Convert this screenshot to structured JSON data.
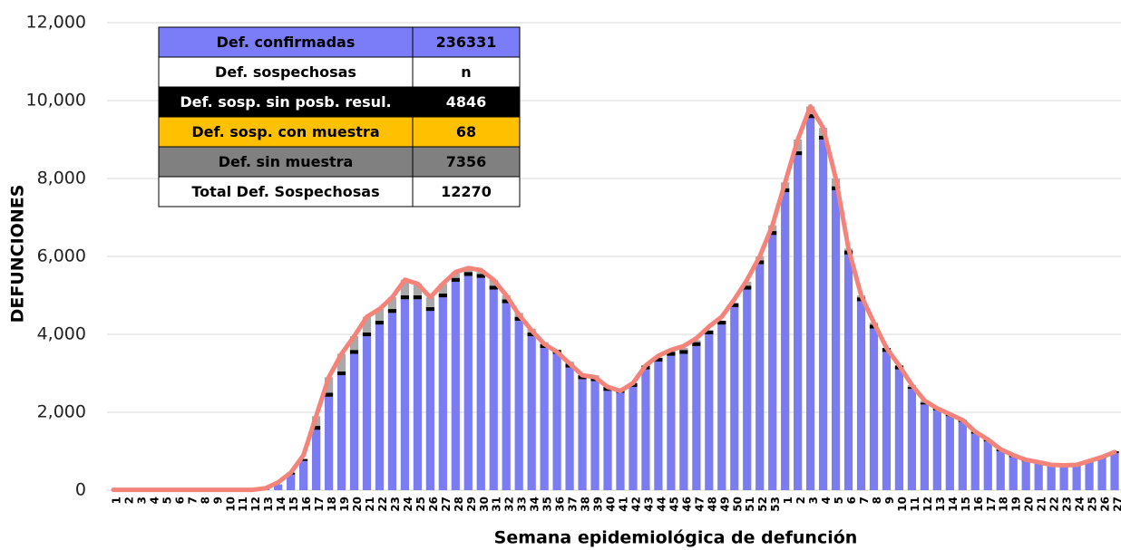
{
  "chart_data": {
    "type": "bar",
    "ylabel": "DEFUNCIONES",
    "xlabel": "Semana epidemiológica de defunción",
    "categories": [
      "1",
      "2",
      "3",
      "4",
      "5",
      "6",
      "7",
      "8",
      "9",
      "10",
      "11",
      "12",
      "13",
      "14",
      "15",
      "16",
      "17",
      "18",
      "19",
      "20",
      "21",
      "22",
      "23",
      "24",
      "25",
      "26",
      "27",
      "28",
      "29",
      "30",
      "31",
      "32",
      "33",
      "34",
      "35",
      "36",
      "37",
      "38",
      "39",
      "40",
      "41",
      "42",
      "43",
      "44",
      "45",
      "46",
      "47",
      "48",
      "49",
      "50",
      "51",
      "52",
      "53",
      "1",
      "2",
      "3",
      "4",
      "5",
      "6",
      "7",
      "8",
      "9",
      "10",
      "11",
      "12",
      "13",
      "14",
      "15",
      "16",
      "17",
      "18",
      "19",
      "20",
      "21",
      "22",
      "23",
      "24",
      "25",
      "26",
      "27"
    ],
    "series": [
      {
        "color": "#7b7cf2",
        "values": [
          0,
          0,
          0,
          0,
          0,
          0,
          0,
          0,
          0,
          0,
          0,
          0,
          30,
          150,
          400,
          750,
          1550,
          2400,
          2950,
          3500,
          3950,
          4250,
          4550,
          4900,
          4900,
          4600,
          4950,
          5350,
          5500,
          5450,
          5150,
          4800,
          4350,
          3950,
          3650,
          3500,
          3150,
          2850,
          2800,
          2550,
          2500,
          2650,
          3100,
          3300,
          3450,
          3500,
          3700,
          4000,
          4250,
          4700,
          5150,
          5800,
          6550,
          7650,
          8600,
          9550,
          9000,
          7700,
          6050,
          4850,
          4150,
          3550,
          3100,
          2600,
          2200,
          2050,
          1900,
          1750,
          1450,
          1250,
          1000,
          850,
          740,
          680,
          620,
          610,
          620,
          720,
          820,
          950
        ]
      },
      {
        "color": "#000000",
        "values": [
          0,
          0,
          0,
          0,
          0,
          0,
          0,
          0,
          0,
          0,
          0,
          0,
          0,
          0,
          50,
          50,
          100,
          100,
          100,
          100,
          100,
          100,
          100,
          100,
          100,
          100,
          100,
          100,
          100,
          100,
          100,
          100,
          100,
          100,
          100,
          100,
          100,
          100,
          100,
          100,
          100,
          100,
          100,
          100,
          100,
          100,
          100,
          100,
          100,
          100,
          100,
          100,
          100,
          100,
          100,
          100,
          100,
          100,
          100,
          100,
          100,
          100,
          100,
          50,
          50,
          50,
          50,
          50,
          50,
          50,
          50,
          50,
          50,
          50,
          50,
          50,
          50,
          50,
          50,
          50
        ]
      },
      {
        "color": "#a9a9a9",
        "values": [
          0,
          0,
          0,
          0,
          0,
          0,
          0,
          0,
          0,
          0,
          0,
          0,
          0,
          0,
          0,
          0,
          250,
          400,
          450,
          350,
          400,
          300,
          300,
          400,
          300,
          250,
          250,
          150,
          100,
          100,
          150,
          100,
          100,
          100,
          50,
          0,
          50,
          0,
          50,
          0,
          0,
          0,
          0,
          0,
          50,
          50,
          50,
          0,
          0,
          0,
          100,
          100,
          150,
          150,
          300,
          200,
          200,
          200,
          50,
          50,
          50,
          0,
          0,
          50,
          50,
          0,
          0,
          0,
          0,
          0,
          0,
          0,
          0,
          0,
          0,
          0,
          0,
          0,
          0,
          0
        ]
      },
      {
        "type": "line",
        "color": "#f4847a",
        "values": [
          10,
          10,
          10,
          10,
          10,
          10,
          10,
          10,
          10,
          10,
          10,
          10,
          50,
          200,
          450,
          900,
          1900,
          2900,
          3500,
          3950,
          4450,
          4650,
          4950,
          5400,
          5300,
          4950,
          5300,
          5600,
          5700,
          5650,
          5400,
          5000,
          4500,
          4100,
          3750,
          3550,
          3250,
          2950,
          2900,
          2650,
          2550,
          2750,
          3200,
          3450,
          3600,
          3700,
          3900,
          4200,
          4450,
          4900,
          5400,
          6000,
          6800,
          7900,
          9000,
          9850,
          9300,
          8000,
          6200,
          5000,
          4300,
          3650,
          3200,
          2700,
          2300,
          2100,
          1950,
          1800,
          1500,
          1300,
          1050,
          900,
          780,
          720,
          650,
          640,
          650,
          750,
          850,
          980
        ]
      }
    ],
    "ylim": [
      0,
      12000
    ],
    "yticks": [
      0,
      {
        "value": 2000,
        "label": "2,000"
      },
      {
        "value": 4000,
        "label": "4,000"
      },
      {
        "value": 6000,
        "label": "6,000"
      },
      {
        "value": 8000,
        "label": "8,000"
      },
      {
        "value": 10000,
        "label": "10,000"
      },
      {
        "value": 12000,
        "label": "12,000"
      }
    ],
    "grid": true,
    "table": {
      "rows": [
        {
          "label": "Def. confirmadas",
          "value": 236331,
          "color": "#7b7cf7",
          "text_color": "#000000"
        },
        {
          "label": "Def. sospechosas",
          "value": "n",
          "color": "#ffffff",
          "text_color": "#000000"
        },
        {
          "label": "Def. sosp. sin posb. resul.",
          "value": 4846,
          "color": "#000000",
          "text_color": "#ffffff"
        },
        {
          "label": "Def. sosp. con  muestra",
          "value": 68,
          "color": "#ffc000",
          "text_color": "#000000"
        },
        {
          "label": "Def. sin muestra",
          "value": 7356,
          "color": "#808080",
          "text_color": "#000000"
        },
        {
          "label": "Total Def. Sospechosas",
          "value": 12270,
          "color": "#ffffff",
          "text_color": "#000000"
        }
      ]
    }
  }
}
